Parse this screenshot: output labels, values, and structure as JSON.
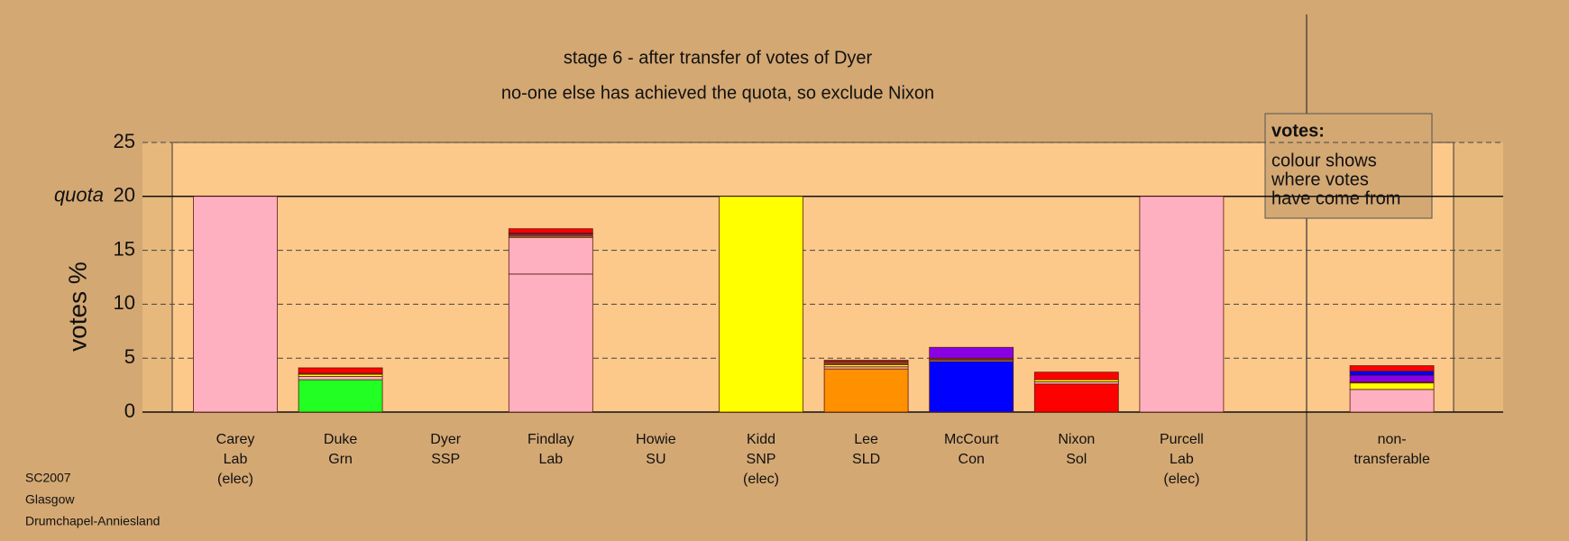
{
  "chart_data": {
    "type": "bar",
    "stacked": true,
    "title": "stage 6 - after transfer of votes of Dyer",
    "subtitle": "no-one else has achieved the quota, so exclude Nixon",
    "y_label": "votes %",
    "categories": [
      [
        "Carey",
        "Lab",
        "(elec)"
      ],
      [
        "Duke",
        "Grn"
      ],
      [
        "Dyer",
        "SSP"
      ],
      [
        "Findlay",
        "Lab"
      ],
      [
        "Howie",
        "SU"
      ],
      [
        "Kidd",
        "SNP",
        "(elec)"
      ],
      [
        "Lee",
        "SLD"
      ],
      [
        "McCourt",
        "Con"
      ],
      [
        "Nixon",
        "Sol"
      ],
      [
        "Purcell",
        "Lab",
        "(elec)"
      ],
      [
        "non-",
        "transferable"
      ]
    ],
    "series": [
      {
        "colors": [
          "#ffb0c0",
          "#22ff22",
          "#888888",
          "#ffb0c0",
          "#8000ff",
          "#ffff00",
          "#ff9000",
          "#0000ff",
          "#ff0000",
          "#ffb0c0",
          "#ffb0c0"
        ],
        "values": [
          20,
          3.0,
          0,
          12.8,
          0,
          20,
          4.0,
          4.7,
          2.6,
          20,
          0
        ]
      },
      {
        "color": "#ffb0c0",
        "values": [
          0,
          0.3,
          0,
          3.4,
          0,
          0,
          0.2,
          0.1,
          0.2,
          0,
          2.1
        ]
      },
      {
        "color": "#ffff00",
        "values": [
          0,
          0.2,
          0,
          0.1,
          0,
          0,
          0.2,
          0.1,
          0.2,
          0,
          0.6
        ]
      },
      {
        "color": "#8b3a2a",
        "values": [
          0,
          0.1,
          0,
          0.2,
          0,
          0,
          0.3,
          0.1,
          0,
          0,
          0.1
        ]
      },
      {
        "color": "#8a00e6",
        "values": [
          0,
          0,
          0,
          0.1,
          0,
          0,
          0,
          1.0,
          0,
          0,
          0.6
        ]
      },
      {
        "color": "#0000ff",
        "values": [
          0,
          0,
          0,
          0,
          0,
          0,
          0,
          0,
          0,
          0,
          0.4
        ]
      },
      {
        "color": "#ff0000",
        "values": [
          0,
          0.5,
          0,
          0.4,
          0,
          0,
          0.1,
          0,
          0.7,
          0,
          0.5
        ]
      }
    ],
    "ylim": [
      0,
      25
    ],
    "yticks": [
      0,
      5,
      10,
      15,
      20,
      25
    ],
    "grid": true,
    "quota": {
      "value": 20,
      "label": "quota"
    },
    "legend": {
      "title": "votes:",
      "lines": [
        "colour shows",
        "where votes",
        "have come from"
      ]
    },
    "footer": [
      "SC2007",
      "Glasgow",
      "Drumchapel-Anniesland"
    ]
  }
}
